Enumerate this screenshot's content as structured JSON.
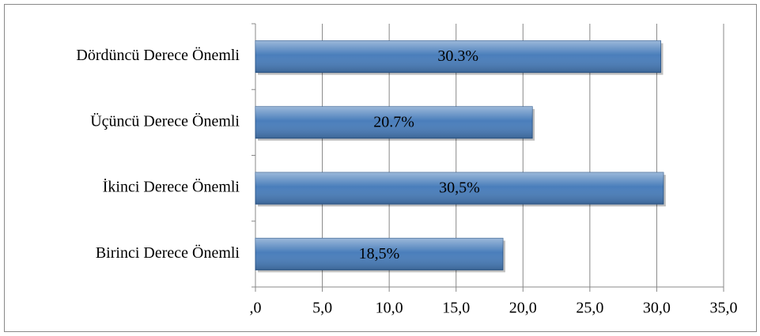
{
  "chart_data": {
    "type": "barh",
    "categories": [
      "Dördüncü Derece Önemli",
      "Üçüncü Derece Önemli",
      "İkinci Derece Önemli",
      "Birinci Derece Önemli"
    ],
    "values": [
      30.3,
      20.7,
      30.5,
      18.5
    ],
    "value_labels": [
      "30.3%",
      "20.7%",
      "30,5%",
      "18,5%"
    ],
    "color": "#4a7ebb",
    "xlim": [
      0,
      35
    ],
    "xticks": [
      {
        "value": 0,
        "label": ",0"
      },
      {
        "value": 5,
        "label": "5,0"
      },
      {
        "value": 10,
        "label": "10,0"
      },
      {
        "value": 15,
        "label": "15,0"
      },
      {
        "value": 20,
        "label": "20,0"
      },
      {
        "value": 25,
        "label": "25,0"
      },
      {
        "value": 30,
        "label": "30,0"
      },
      {
        "value": 35,
        "label": "35,0"
      }
    ],
    "grid": true
  }
}
